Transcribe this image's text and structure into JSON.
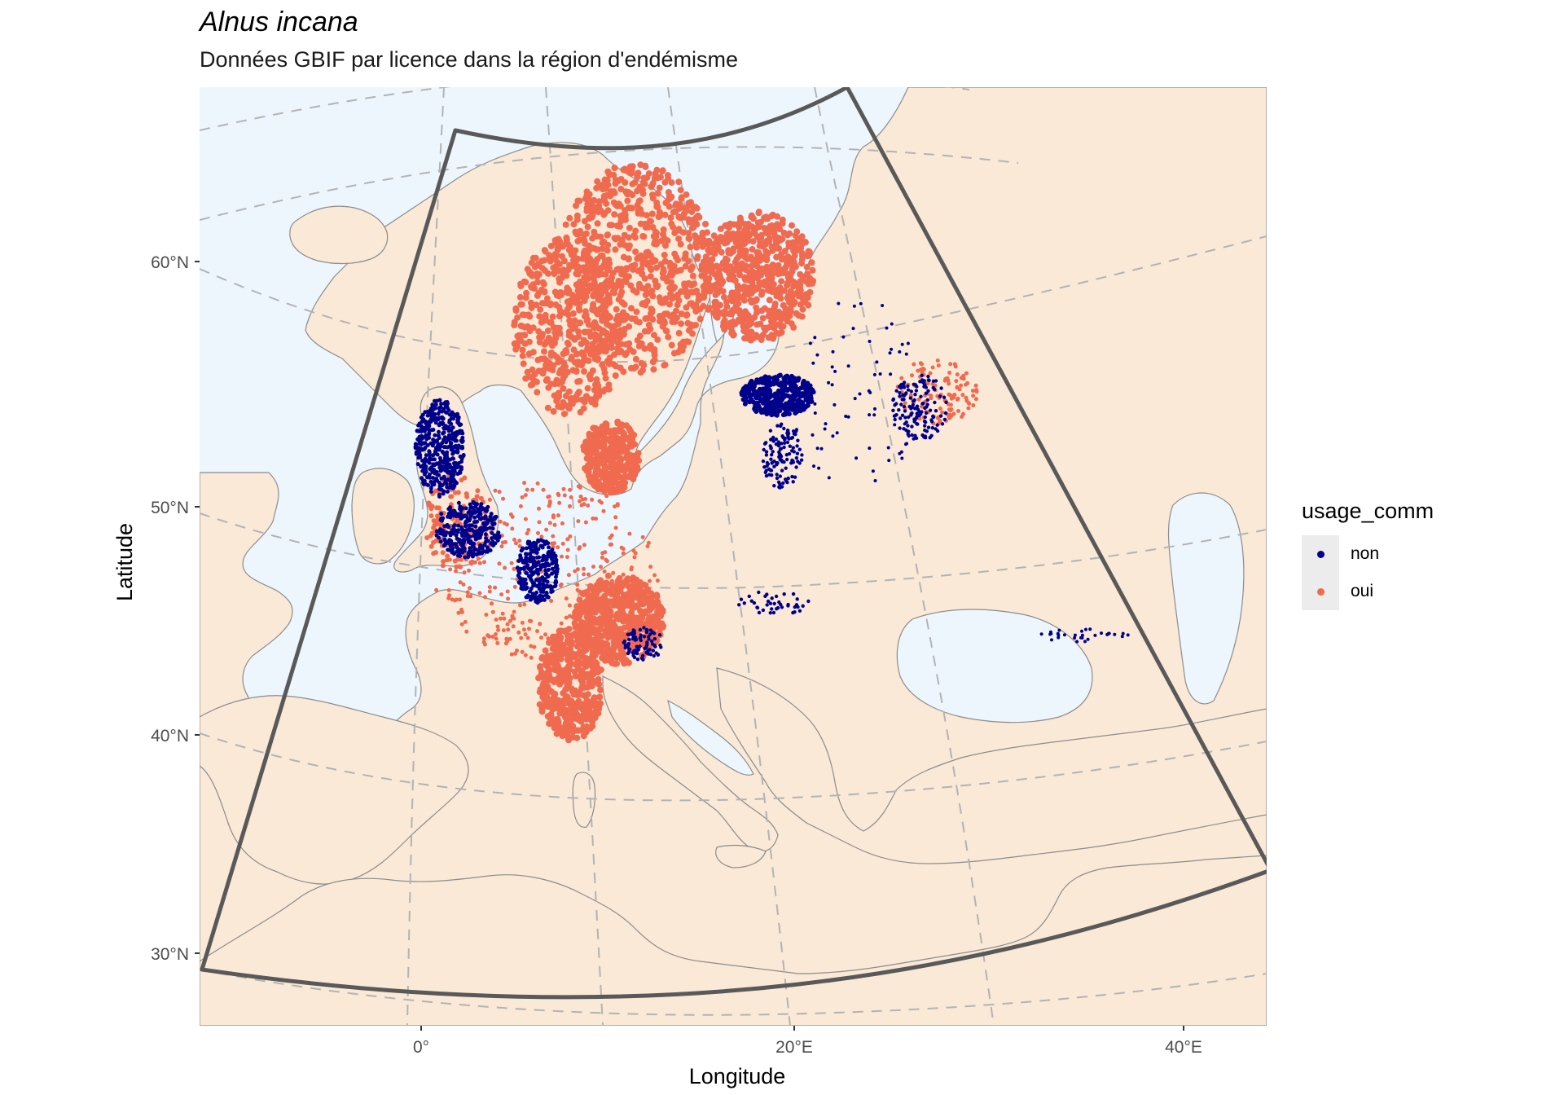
{
  "title": "Alnus incana",
  "subtitle": "Données GBIF par licence dans la région d'endémisme",
  "axes": {
    "x_title": "Longitude",
    "y_title": "Latitude",
    "x_ticks": [
      "0°",
      "20°E",
      "40°E"
    ],
    "y_ticks": [
      "60°N",
      "50°N",
      "40°N",
      "30°N"
    ]
  },
  "legend": {
    "title": "usage_comm",
    "items": [
      {
        "label": "non",
        "color": "#00008b"
      },
      {
        "label": "oui",
        "color": "#ef6a4f"
      }
    ]
  },
  "colors": {
    "sea": "#eef6fd",
    "land": "#f9e9d6",
    "border": "#8c8c8c",
    "graticule": "#b3b3b3",
    "frame": "#595959"
  }
}
